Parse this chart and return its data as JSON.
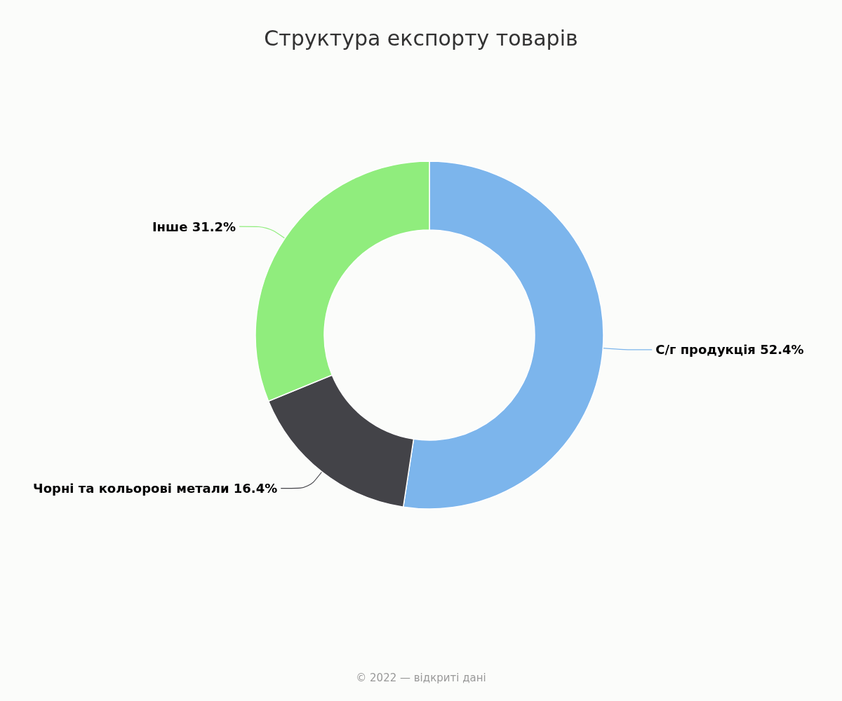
{
  "chart_data": {
    "type": "donut",
    "title": "Структура експорту товарів",
    "categories": [
      "С/г продукція",
      "Чорні та кольорові метали",
      "Інше"
    ],
    "values": [
      52.4,
      16.4,
      31.2
    ],
    "colors": [
      "#7cb5ec",
      "#434348",
      "#90ed7d"
    ],
    "value_labels": [
      "52.4%",
      "16.4%",
      "31.2%"
    ],
    "legend": false,
    "annotations": [
      "© 2022 — відкриті дані"
    ]
  }
}
